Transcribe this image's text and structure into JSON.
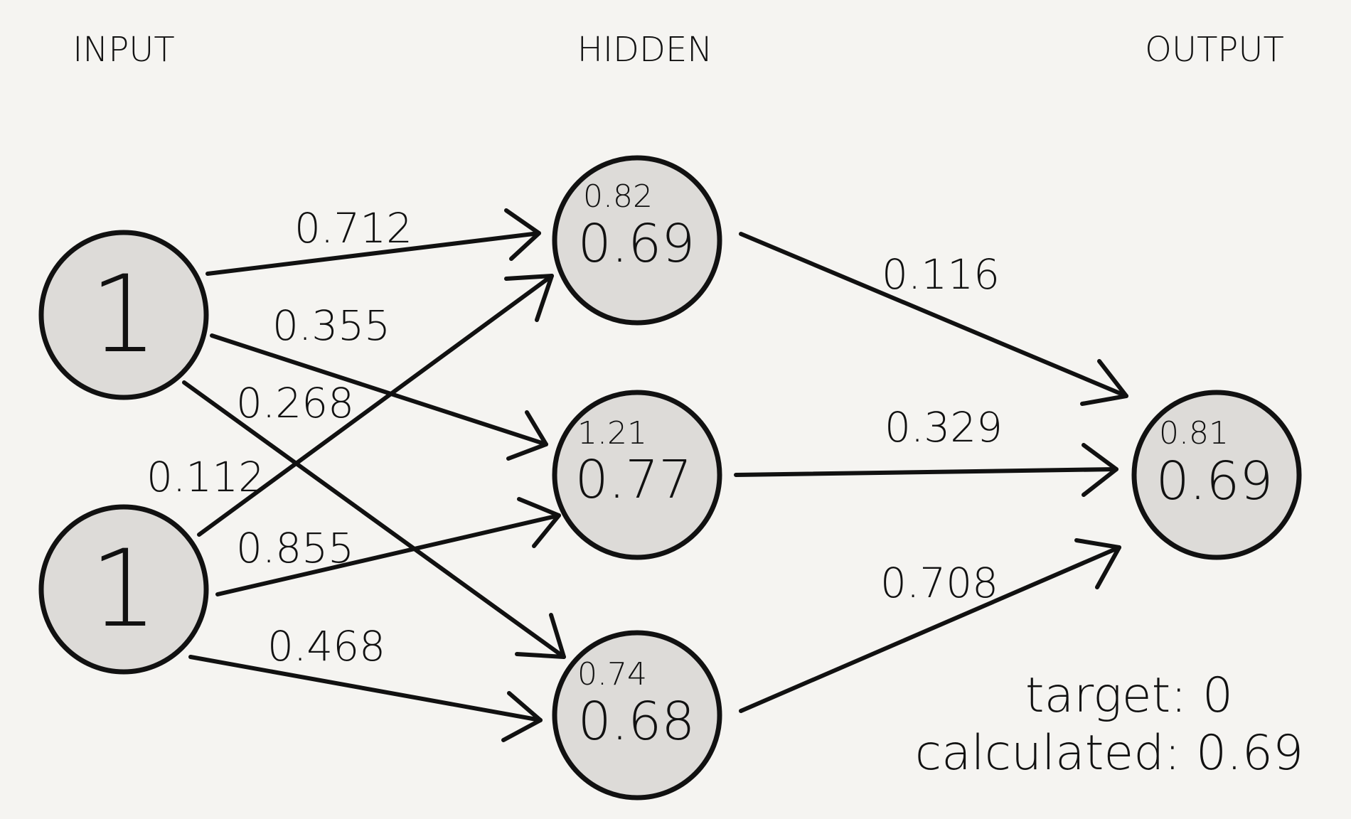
{
  "layers": {
    "input": "INPUT",
    "hidden": "HIDDEN",
    "output": "OUTPUT"
  },
  "inputs": [
    {
      "value": "1"
    },
    {
      "value": "1"
    }
  ],
  "hidden": [
    {
      "net": "0.82",
      "activation": "0.69"
    },
    {
      "net": "1.21",
      "activation": "0.77"
    },
    {
      "net": "0.74",
      "activation": "0.68"
    }
  ],
  "output": {
    "net": "0.81",
    "activation": "0.69"
  },
  "weights_input_hidden": {
    "i1_h1": "0.712",
    "i1_h2": "0.355",
    "i1_h3": "0.268",
    "i2_h1": "0.112",
    "i2_h2": "0.855",
    "i2_h3": "0.468"
  },
  "weights_hidden_output": {
    "h1_o": "0.116",
    "h2_o": "0.329",
    "h3_o": "0.708"
  },
  "summary": {
    "target": "target: 0",
    "calculated": "calculated: 0.69"
  },
  "colors": {
    "background": "#f5f4f1",
    "node_fill": "#dddbd8",
    "stroke": "#111111"
  }
}
